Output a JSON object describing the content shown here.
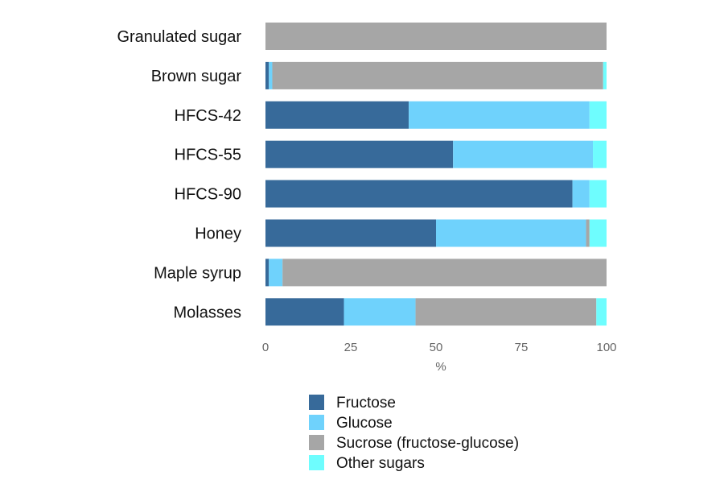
{
  "chart_data": {
    "type": "bar",
    "orientation": "horizontal",
    "stacked": true,
    "categories": [
      "Granulated sugar",
      "Brown sugar",
      "HFCS-42",
      "HFCS-55",
      "HFCS-90",
      "Honey",
      "Maple syrup",
      "Molasses"
    ],
    "series": [
      {
        "name": "Fructose",
        "color": "#376a9a",
        "values": [
          0,
          1,
          42,
          55,
          90,
          50,
          1,
          23
        ]
      },
      {
        "name": "Glucose",
        "color": "#6fd2fc",
        "values": [
          0,
          1,
          53,
          41,
          5,
          44,
          4,
          21
        ]
      },
      {
        "name": "Sucrose (fructose-glucose)",
        "color": "#a6a6a6",
        "values": [
          100,
          97,
          0,
          0,
          0,
          1,
          95,
          53
        ]
      },
      {
        "name": "Other sugars",
        "color": "#6efdfe",
        "values": [
          0,
          1,
          5,
          4,
          5,
          5,
          0,
          3
        ]
      }
    ],
    "xlim": [
      0,
      100
    ],
    "xticks": [
      0,
      25,
      50,
      75,
      100
    ],
    "xlabel": "%",
    "ylabel": "",
    "grid": false,
    "legend_position": "bottom"
  }
}
